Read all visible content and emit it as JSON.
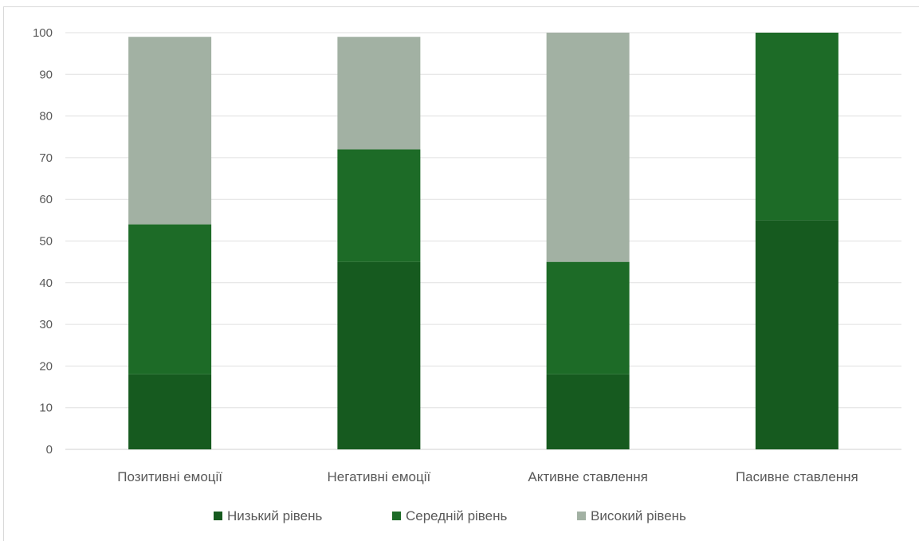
{
  "chart_data": {
    "type": "bar",
    "stacked": true,
    "title": "",
    "xlabel": "",
    "ylabel": "",
    "ylim": [
      0,
      100
    ],
    "yticks": [
      0,
      10,
      20,
      30,
      40,
      50,
      60,
      70,
      80,
      90,
      100
    ],
    "grid": true,
    "legend_position": "bottom",
    "categories": [
      "Позитивні емоції",
      "Негативні емоції",
      "Активне ставлення",
      "Пасивне ставлення"
    ],
    "series": [
      {
        "name": "Низький рівень",
        "values": [
          18,
          45,
          18,
          55
        ],
        "color": "#165a1f"
      },
      {
        "name": "Середній рівень",
        "values": [
          36,
          27,
          27,
          45
        ],
        "color": "#1d6b27"
      },
      {
        "name": "Високий рівень",
        "values": [
          45,
          27,
          55,
          0
        ],
        "color": "#a2b1a3"
      }
    ]
  }
}
